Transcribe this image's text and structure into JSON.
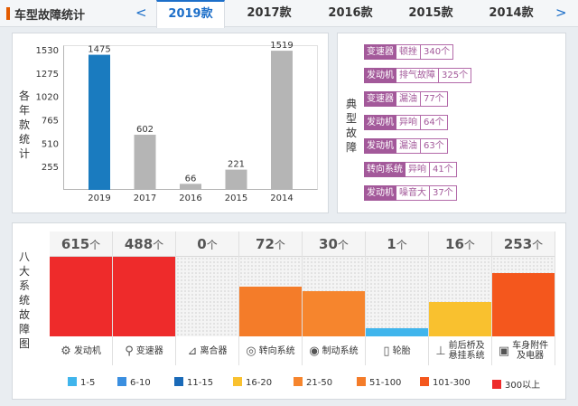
{
  "header": {
    "title": "车型故障统计",
    "prev_arrow": "<",
    "next_arrow": ">",
    "tabs": [
      {
        "label": "2019款",
        "active": true
      },
      {
        "label": "2017款",
        "active": false
      },
      {
        "label": "2016款",
        "active": false
      },
      {
        "label": "2015款",
        "active": false
      },
      {
        "label": "2014款",
        "active": false
      }
    ]
  },
  "yearly_chart": {
    "side_label": [
      "各",
      "年",
      "款",
      "统",
      "计"
    ]
  },
  "chart_data": {
    "type": "bar",
    "categories": [
      "2019",
      "2017",
      "2016",
      "2015",
      "2014"
    ],
    "values": [
      1475,
      602,
      66,
      221,
      1519
    ],
    "data_labels": [
      "1475",
      "602",
      "66",
      "221",
      "1519"
    ],
    "yticks": [
      "1530",
      "1275",
      "1020",
      "765",
      "510",
      "255"
    ],
    "ylim": [
      0,
      1530
    ],
    "colors": [
      "#1a7bbf",
      "#b5b5b5",
      "#b5b5b5",
      "#b5b5b5",
      "#b5b5b5"
    ]
  },
  "typical_faults": {
    "side_label": [
      "典",
      "型",
      "故",
      "障"
    ],
    "items": [
      {
        "category": "变速器",
        "symptom": "顿挫",
        "count": "340个"
      },
      {
        "category": "发动机",
        "symptom": "排气故障",
        "count": "325个"
      },
      {
        "category": "变速器",
        "symptom": "漏油",
        "count": "77个"
      },
      {
        "category": "发动机",
        "symptom": "异响",
        "count": "64个"
      },
      {
        "category": "发动机",
        "symptom": "漏油",
        "count": "63个"
      },
      {
        "category": "转向系统",
        "symptom": "异响",
        "count": "41个"
      },
      {
        "category": "发动机",
        "symptom": "噪音大",
        "count": "37个"
      }
    ]
  },
  "systems": {
    "side_label": [
      "八",
      "大",
      "系",
      "统",
      "故",
      "障",
      "图"
    ],
    "items": [
      {
        "count": "615",
        "unit": "个",
        "name": "发动机",
        "icon": "engine-icon",
        "glyph": "⚙",
        "level": 1.0,
        "color": "#ee2b2b"
      },
      {
        "count": "488",
        "unit": "个",
        "name": "变速器",
        "icon": "gearshift-icon",
        "glyph": "⚲",
        "level": 1.0,
        "color": "#ee2b2b"
      },
      {
        "count": "0",
        "unit": "个",
        "name": "离合器",
        "icon": "clutch-pedal-icon",
        "glyph": "⊿",
        "level": 0.0,
        "color": "#ee2b2b"
      },
      {
        "count": "72",
        "unit": "个",
        "name": "转向系统",
        "icon": "steering-wheel-icon",
        "glyph": "◎",
        "level": 0.63,
        "color": "#f47c29"
      },
      {
        "count": "30",
        "unit": "个",
        "name": "制动系统",
        "icon": "brake-disc-icon",
        "glyph": "◉",
        "level": 0.57,
        "color": "#f6852d"
      },
      {
        "count": "1",
        "unit": "个",
        "name": "轮胎",
        "icon": "tire-icon",
        "glyph": "▯",
        "level": 0.1,
        "color": "#40b5ec"
      },
      {
        "count": "16",
        "unit": "个",
        "name": "前后桥及\n悬挂系统",
        "icon": "axle-suspension-icon",
        "glyph": "⊥",
        "level": 0.43,
        "color": "#f9c12f"
      },
      {
        "count": "253",
        "unit": "个",
        "name": "车身附件\n及电器",
        "icon": "battery-icon",
        "glyph": "▣",
        "level": 0.8,
        "color": "#f4571d"
      }
    ]
  },
  "legend": [
    {
      "label": "1-5",
      "color": "#40b5ec"
    },
    {
      "label": "6-10",
      "color": "#3b8fe0"
    },
    {
      "label": "11-15",
      "color": "#1a6ab8"
    },
    {
      "label": "16-20",
      "color": "#f9c12f"
    },
    {
      "label": "21-50",
      "color": "#f6852d"
    },
    {
      "label": "51-100",
      "color": "#f47c29"
    },
    {
      "label": "101-300",
      "color": "#f4571d"
    },
    {
      "label": "300以上",
      "color": "#ee2b2b"
    }
  ]
}
